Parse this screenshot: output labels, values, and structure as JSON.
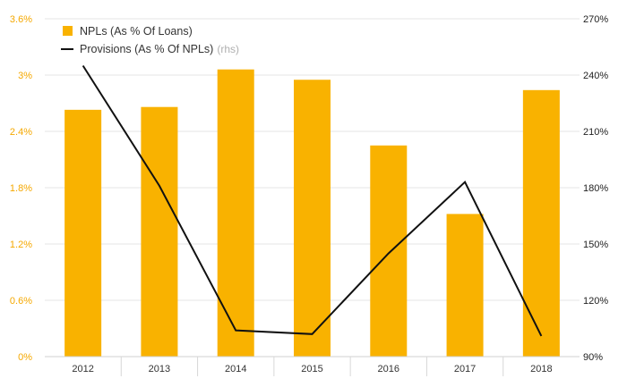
{
  "chart_data": {
    "type": "bar",
    "categories": [
      "2012",
      "2013",
      "2014",
      "2015",
      "2016",
      "2017",
      "2018"
    ],
    "series": [
      {
        "name": "NPLs (As % Of Loans)",
        "kind": "bar",
        "axis": "left",
        "color": "#f9b200",
        "values": [
          2.63,
          2.66,
          3.06,
          2.95,
          2.25,
          1.52,
          2.84
        ]
      },
      {
        "name": "Provisions (As % Of NPLs)",
        "kind": "line",
        "axis": "right",
        "color": "#111111",
        "values": [
          245,
          181,
          104,
          102,
          145,
          183,
          101
        ]
      }
    ],
    "legend": [
      {
        "label": "NPLs (As % Of Loans)",
        "note": ""
      },
      {
        "label": "Provisions (As % Of NPLs)",
        "note": "(rhs)"
      }
    ],
    "legend_position": "top-left",
    "y_left": {
      "ylim": [
        0,
        3.6
      ],
      "ticks": [
        0,
        0.6,
        1.2,
        1.8,
        2.4,
        3.0,
        3.6
      ],
      "tick_labels": [
        "0%",
        "0.6%",
        "1.2%",
        "1.8%",
        "2.4%",
        "3%",
        "3.6%"
      ]
    },
    "y_right": {
      "ylim": [
        90,
        270
      ],
      "ticks": [
        90,
        120,
        150,
        180,
        210,
        240,
        270
      ],
      "tick_labels": [
        "90%",
        "120%",
        "150%",
        "180%",
        "210%",
        "240%",
        "270%"
      ]
    },
    "grid": true,
    "title": "",
    "xlabel": "",
    "ylabel": ""
  }
}
